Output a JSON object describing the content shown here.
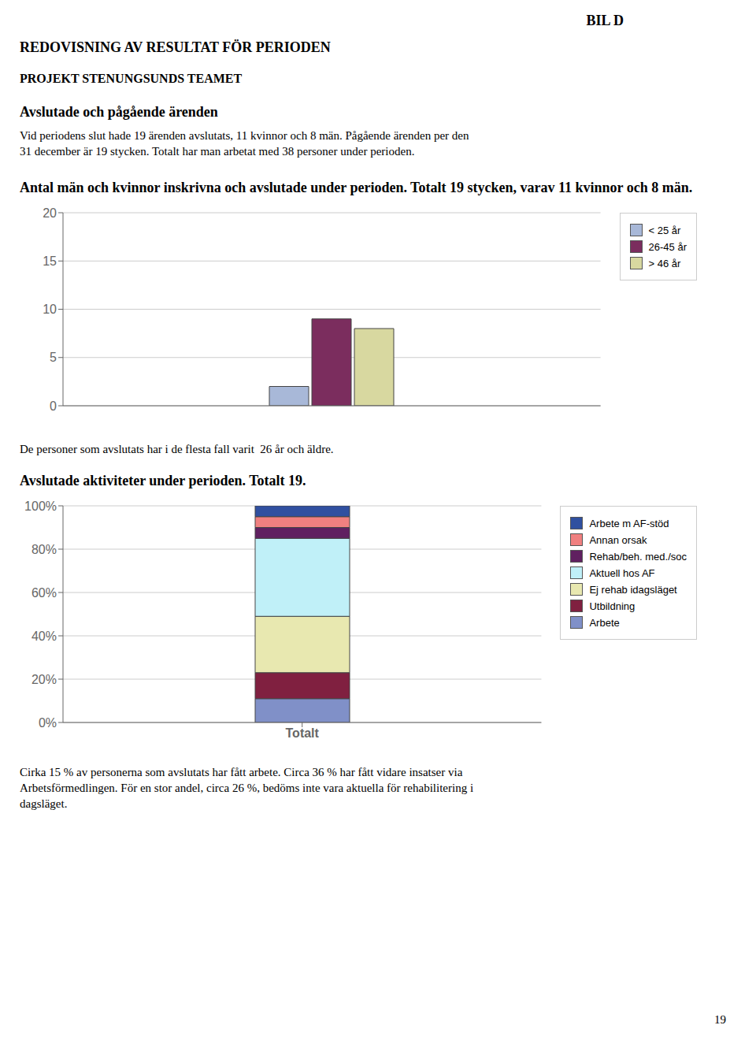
{
  "title": "REDOVISNING AV RESULTAT FÖR PERIODEN",
  "subtitle": "PROJEKT STENUNGSUNDS TEAMET",
  "annotations": [
    "BIL D",
    "Avslutade och pågående ärenden",
    "Vid periodens slut hade 19 ärenden avslutats, 11 kvinnor och 8 män. Pågående ärenden per den",
    "31 december är 19 stycken. Totalt har man arbetat med 38 personer under perioden."
  ],
  "chart_data": [
    {
      "type": "bar",
      "title": "Antal män och kvinnor inskrivna och avslutade under perioden. Totalt 19 stycken, varav 11 kvinnor och 8 män.",
      "categories": [
        null
      ],
      "series": [
        {
          "name": "< 25 år",
          "color": "#a8b8d8",
          "values": [
            2
          ]
        },
        {
          "name": "26-45 år",
          "color": "#7b2d5e",
          "values": [
            9
          ]
        },
        {
          "name": "> 46 år",
          "color": "#d8d8a0",
          "values": [
            8
          ]
        }
      ],
      "ylim": [
        0,
        20
      ],
      "yticks": [
        0,
        5,
        10,
        15,
        20
      ],
      "grid": true,
      "legend": "right",
      "tick_labels": "y",
      "annotations": [
        "De personer som avslutats har i de flesta fall varit  26 år och äldre."
      ]
    },
    {
      "type": "bar",
      "title": "Avslutade aktiviteter under perioden. Totalt 19.",
      "stacked": true,
      "categories": [
        "Totalt"
      ],
      "series": [
        {
          "name": "Arbete m AF-stöd",
          "color": "#3050a0",
          "values": [
            5
          ]
        },
        {
          "name": "Annan orsak",
          "color": "#f08080",
          "values": [
            5
          ]
        },
        {
          "name": "Rehab/beh. med./soc",
          "color": "#602060",
          "values": [
            5
          ]
        },
        {
          "name": "Aktuell hos AF",
          "color": "#c0f0f8",
          "values": [
            36
          ]
        },
        {
          "name": "Ej rehab idagsläget",
          "color": "#e8e8b0",
          "values": [
            26
          ]
        },
        {
          "name": "Utbildning",
          "color": "#802040",
          "values": [
            12
          ]
        },
        {
          "name": "Arbete",
          "color": "#8090c8",
          "values": [
            11
          ]
        }
      ],
      "ylim": [
        0,
        100
      ],
      "yticks": [
        {
          "value": 0,
          "label": "0%"
        },
        {
          "value": 20,
          "label": "20%"
        },
        {
          "value": 40,
          "label": "40%"
        },
        {
          "value": 60,
          "label": "60%"
        },
        {
          "value": 80,
          "label": "80%"
        },
        {
          "value": 100,
          "label": "100%"
        }
      ],
      "grid": true,
      "legend": "right",
      "annotations": [
        "Cirka 15 % av personerna som avslutats har fått arbete. Circa 36 % har fått vidare insatser via",
        "Arbetsförmedlingen. För en stor andel, circa 26 %, bedöms inte vara aktuella för rehabilitering i",
        "dagsläget.",
        "19"
      ]
    }
  ]
}
